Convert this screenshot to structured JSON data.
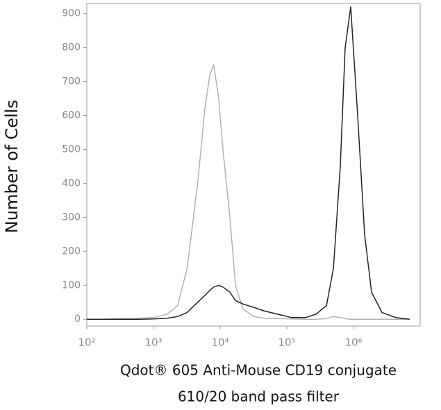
{
  "chart_data": {
    "type": "line",
    "xlabel": [
      "Qdot® 605 Anti-Mouse CD19 conjugate",
      "610/20 band pass filter"
    ],
    "ylabel": "Number of Cells",
    "xscale": "log",
    "x": [
      100,
      180,
      330,
      600,
      1000,
      1600,
      2300,
      3200,
      4600,
      5900,
      7000,
      8000,
      9500,
      11000,
      14000,
      17000,
      22000,
      32000,
      45000,
      73000,
      118000,
      191000,
      274000,
      393000,
      500000,
      634000,
      750000,
      908000,
      1155000,
      1468000,
      1866000,
      2674000,
      4320000,
      6980000
    ],
    "series": [
      {
        "color": "#b0b0b0",
        "values": [
          0,
          0,
          2,
          3,
          5,
          15,
          40,
          150,
          400,
          620,
          720,
          750,
          650,
          500,
          300,
          100,
          30,
          8,
          3,
          2,
          1,
          0,
          0,
          2,
          8,
          5,
          2,
          0,
          0,
          0,
          0,
          0,
          0,
          0
        ]
      },
      {
        "color": "#222222",
        "values": [
          0,
          0,
          0,
          0,
          1,
          3,
          8,
          20,
          50,
          70,
          85,
          95,
          100,
          95,
          80,
          55,
          45,
          35,
          25,
          15,
          5,
          5,
          15,
          40,
          150,
          450,
          800,
          920,
          600,
          250,
          80,
          20,
          5,
          0
        ]
      }
    ],
    "xlim": [
      100,
      10000000
    ],
    "xticks": [
      {
        "value": 100,
        "label": "10²"
      },
      {
        "value": 1000,
        "label": "10³"
      },
      {
        "value": 10000,
        "label": "10⁴"
      },
      {
        "value": 100000,
        "label": "10⁵"
      },
      {
        "value": 1000000,
        "label": "10⁶"
      }
    ],
    "ylim": [
      -20,
      930
    ],
    "yticks": [
      0,
      100,
      200,
      300,
      400,
      500,
      600,
      700,
      800,
      900
    ]
  }
}
